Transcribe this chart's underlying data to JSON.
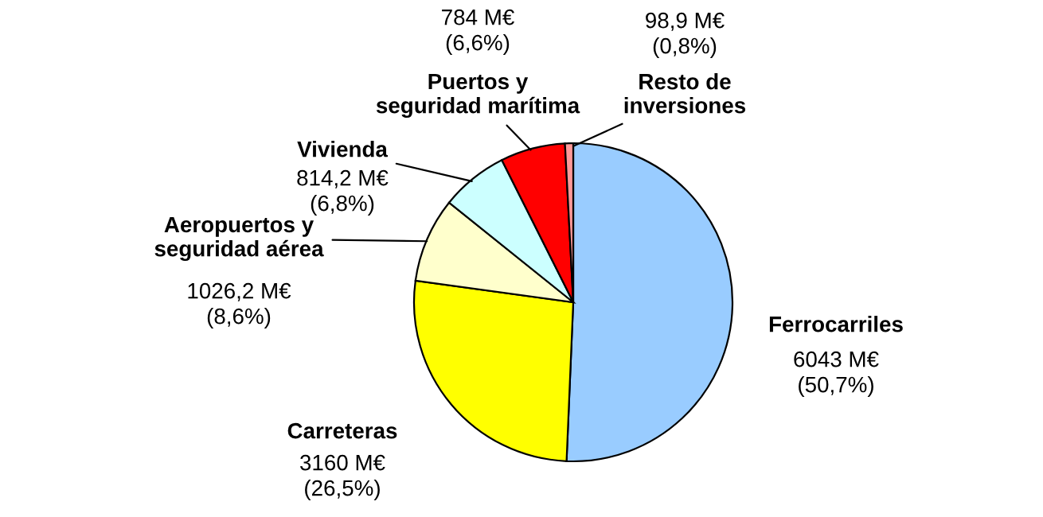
{
  "chart_data": {
    "type": "pie",
    "categories": [
      "Ferrocarriles",
      "Carreteras",
      "Aeropuertos y\nseguridad aérea",
      "Vivienda",
      "Puertos y\nseguridad marítima",
      "Resto de\ninversiones"
    ],
    "values": [
      6043,
      3160,
      1026.2,
      814.2,
      784,
      98.9
    ],
    "colors": [
      "#99ccff",
      "#ffff00",
      "#ffffcc",
      "#ccffff",
      "#ff0000",
      "#ff9999"
    ],
    "value_labels": [
      "6043 M€\n(50,7%)",
      "3160 M€\n(26,5%)",
      "1026,2 M€\n(8,6%)",
      "814,2 M€\n(6,8%)",
      "784 M€\n(6,6%)",
      "98,9 M€\n(0,8%)"
    ],
    "legend": false
  }
}
